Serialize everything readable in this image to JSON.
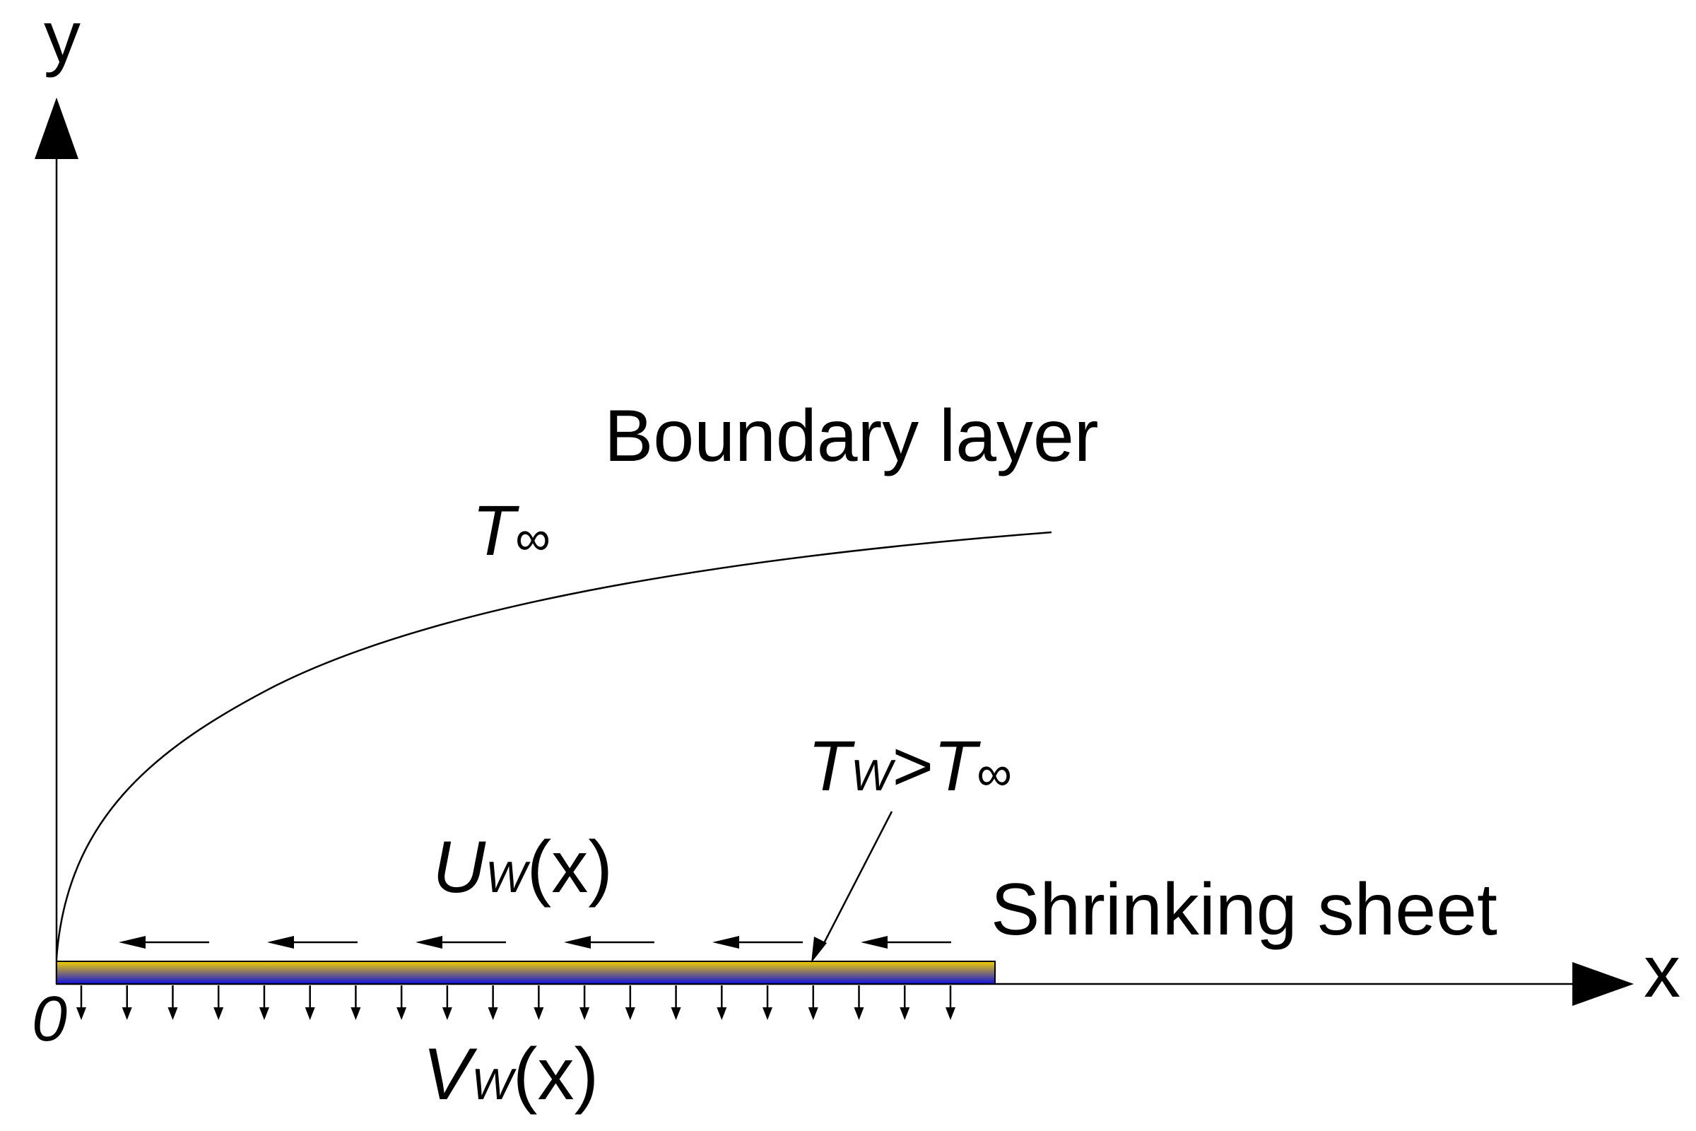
{
  "axes": {
    "y_label": "y",
    "x_label": "x",
    "origin_label": "0"
  },
  "labels": {
    "boundary_layer": "Boundary layer",
    "t_inf_main": "T",
    "t_inf_main_sub": "∞",
    "tw_main": "T",
    "tw_sub": "W",
    "tw_gt": ">",
    "tw_t": "T",
    "tw_t_sub": "∞",
    "uw_main": "U",
    "uw_sub": "W",
    "uw_arg": "(x)",
    "vw_main": "V",
    "vw_sub": "W",
    "vw_arg": "(x)",
    "shrinking_sheet": "Shrinking sheet"
  },
  "colors": {
    "ink": "#000000",
    "sheet_top": "#f2d000",
    "sheet_bottom": "#1010e0",
    "background": "#ffffff"
  },
  "counts": {
    "shrink_arrows": 6,
    "suction_arrows": 20
  }
}
